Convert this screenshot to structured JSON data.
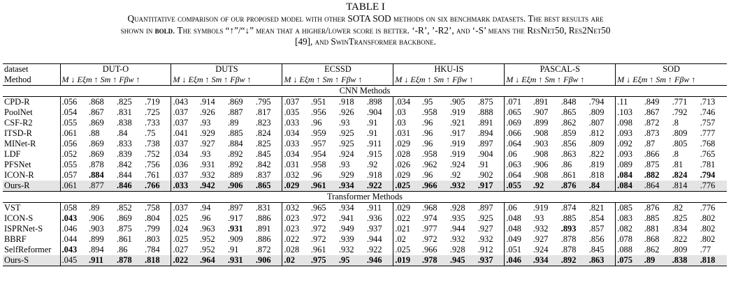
{
  "table_title": "TABLE I",
  "caption_line1": "Quantitative comparison of our proposed model with other SOTA SOD methods on six benchmark datasets. The best results are",
  "caption_line2_pre": "shown in ",
  "caption_line2_bold": "bold",
  "caption_line2_post": ". The symbols “↑”/“↓” mean that a higher/lower score is better. ‘-R’, ’-R2’, and ‘-S’ means the ResNet50, Res2Net50",
  "caption_line3": "[49], and SwinTransformer backbone.",
  "header": {
    "dataset_label": "dataset",
    "method_label": "Method",
    "datasets": [
      "DUT-O",
      "DUTS",
      "ECSSD",
      "HKU-IS",
      "PASCAL-S",
      "SOD"
    ],
    "metrics_label": "M ↓ Eξm ↑ Sm ↑ Fβw ↑"
  },
  "groups": [
    {
      "name": "CNN Methods",
      "rows": [
        {
          "method": "CPD-R",
          "ours": false,
          "values": [
            ".056",
            ".868",
            ".825",
            ".719",
            ".043",
            ".914",
            ".869",
            ".795",
            ".037",
            ".951",
            ".918",
            ".898",
            ".034",
            ".95",
            ".905",
            ".875",
            ".071",
            ".891",
            ".848",
            ".794",
            ".11",
            ".849",
            ".771",
            ".713"
          ],
          "bold": []
        },
        {
          "method": "PoolNet",
          "ours": false,
          "values": [
            ".054",
            ".867",
            ".831",
            ".725",
            ".037",
            ".926",
            ".887",
            ".817",
            ".035",
            ".956",
            ".926",
            ".904",
            ".03",
            ".958",
            ".919",
            ".888",
            ".065",
            ".907",
            ".865",
            ".809",
            ".103",
            ".867",
            ".792",
            ".746"
          ],
          "bold": []
        },
        {
          "method": "CSF-R2",
          "ours": false,
          "values": [
            ".055",
            ".869",
            ".838",
            ".733",
            ".037",
            ".93",
            ".89",
            ".823",
            ".033",
            ".96",
            ".93",
            ".91",
            ".03",
            ".96",
            ".921",
            ".891",
            ".069",
            ".899",
            ".862",
            ".807",
            ".098",
            ".872",
            ".8",
            ".757"
          ],
          "bold": []
        },
        {
          "method": "ITSD-R",
          "ours": false,
          "values": [
            ".061",
            ".88",
            ".84",
            ".75",
            ".041",
            ".929",
            ".885",
            ".824",
            ".034",
            ".959",
            ".925",
            ".91",
            ".031",
            ".96",
            ".917",
            ".894",
            ".066",
            ".908",
            ".859",
            ".812",
            ".093",
            ".873",
            ".809",
            ".777"
          ],
          "bold": []
        },
        {
          "method": "MINet-R",
          "ours": false,
          "values": [
            ".056",
            ".869",
            ".833",
            ".738",
            ".037",
            ".927",
            ".884",
            ".825",
            ".033",
            ".957",
            ".925",
            ".911",
            ".029",
            ".96",
            ".919",
            ".897",
            ".064",
            ".903",
            ".856",
            ".809",
            ".092",
            ".87",
            ".805",
            ".768"
          ],
          "bold": []
        },
        {
          "method": "LDF",
          "ours": false,
          "values": [
            ".052",
            ".869",
            ".839",
            ".752",
            ".034",
            ".93",
            ".892",
            ".845",
            ".034",
            ".954",
            ".924",
            ".915",
            ".028",
            ".958",
            ".919",
            ".904",
            ".06",
            ".908",
            ".863",
            ".822",
            ".093",
            ".866",
            ".8",
            ".765"
          ],
          "bold": []
        },
        {
          "method": "PFSNet",
          "ours": false,
          "values": [
            ".055",
            ".878",
            ".842",
            ".756",
            ".036",
            ".931",
            ".892",
            ".842",
            ".031",
            ".958",
            ".93",
            ".92",
            ".026",
            ".962",
            ".924",
            ".91",
            ".063",
            ".906",
            ".86",
            ".819",
            ".089",
            ".875",
            ".81",
            ".781"
          ],
          "bold": []
        },
        {
          "method": "ICON-R",
          "ours": false,
          "values": [
            ".057",
            ".884",
            ".844",
            ".761",
            ".037",
            ".932",
            ".889",
            ".837",
            ".032",
            ".96",
            ".929",
            ".918",
            ".029",
            ".96",
            ".92",
            ".902",
            ".064",
            ".908",
            ".861",
            ".818",
            ".084",
            ".882",
            ".824",
            ".794"
          ],
          "bold": [
            1,
            20,
            21,
            22,
            23
          ]
        },
        {
          "method": "Ours-R",
          "ours": true,
          "values": [
            ".061",
            ".877",
            ".846",
            ".766",
            ".033",
            ".942",
            ".906",
            ".865",
            ".029",
            ".961",
            ".934",
            ".922",
            ".025",
            ".966",
            ".932",
            ".917",
            ".055",
            ".92",
            ".876",
            ".84",
            ".084",
            ".864",
            ".814",
            ".776"
          ],
          "bold": [
            2,
            3,
            4,
            5,
            6,
            7,
            8,
            9,
            10,
            11,
            12,
            13,
            14,
            15,
            16,
            17,
            18,
            19,
            20
          ]
        }
      ]
    },
    {
      "name": "Transformer Methods",
      "rows": [
        {
          "method": "VST",
          "ours": false,
          "values": [
            ".058",
            ".89",
            ".852",
            ".758",
            ".037",
            ".94",
            ".897",
            ".831",
            ".032",
            ".965",
            ".934",
            ".911",
            ".029",
            ".968",
            ".928",
            ".897",
            ".06",
            ".919",
            ".874",
            ".821",
            ".085",
            ".876",
            ".82",
            ".776"
          ],
          "bold": []
        },
        {
          "method": "ICON-S",
          "ours": false,
          "values": [
            ".043",
            ".906",
            ".869",
            ".804",
            ".025",
            ".96",
            ".917",
            ".886",
            ".023",
            ".972",
            ".941",
            ".936",
            ".022",
            ".974",
            ".935",
            ".925",
            ".048",
            ".93",
            ".885",
            ".854",
            ".083",
            ".885",
            ".825",
            ".802"
          ],
          "bold": [
            0
          ]
        },
        {
          "method": "ISPRNet-S",
          "ours": false,
          "values": [
            ".046",
            ".903",
            ".875",
            ".799",
            ".024",
            ".963",
            ".931",
            ".891",
            ".023",
            ".972",
            ".949",
            ".937",
            ".021",
            ".977",
            ".944",
            ".927",
            ".048",
            ".932",
            ".893",
            ".857",
            ".082",
            ".881",
            ".834",
            ".802"
          ],
          "bold": [
            6,
            18
          ]
        },
        {
          "method": "BBRF",
          "ours": false,
          "values": [
            ".044",
            ".899",
            ".861",
            ".803",
            ".025",
            ".952",
            ".909",
            ".886",
            ".022",
            ".972",
            ".939",
            ".944",
            ".02",
            ".972",
            ".932",
            ".932",
            ".049",
            ".927",
            ".878",
            ".856",
            ".078",
            ".868",
            ".822",
            ".802"
          ],
          "bold": []
        },
        {
          "method": "SelfReformer",
          "ours": false,
          "values": [
            ".043",
            ".894",
            ".86",
            ".784",
            ".027",
            ".952",
            ".91",
            ".872",
            ".028",
            ".961",
            ".932",
            ".922",
            ".025",
            ".966",
            ".928",
            ".912",
            ".051",
            ".924",
            ".878",
            ".845",
            ".088",
            ".862",
            ".809",
            ".77"
          ],
          "bold": [
            0
          ]
        },
        {
          "method": "Ours-S",
          "ours": true,
          "values": [
            ".045",
            ".911",
            ".878",
            ".818",
            ".022",
            ".964",
            ".931",
            ".906",
            ".02",
            ".975",
            ".95",
            ".946",
            ".019",
            ".978",
            ".945",
            ".937",
            ".046",
            ".934",
            ".892",
            ".863",
            ".075",
            ".89",
            ".838",
            ".818"
          ],
          "bold": [
            1,
            2,
            3,
            4,
            5,
            6,
            7,
            8,
            9,
            10,
            11,
            12,
            13,
            14,
            15,
            16,
            17,
            18,
            19,
            20,
            21,
            22,
            23
          ]
        }
      ]
    }
  ]
}
